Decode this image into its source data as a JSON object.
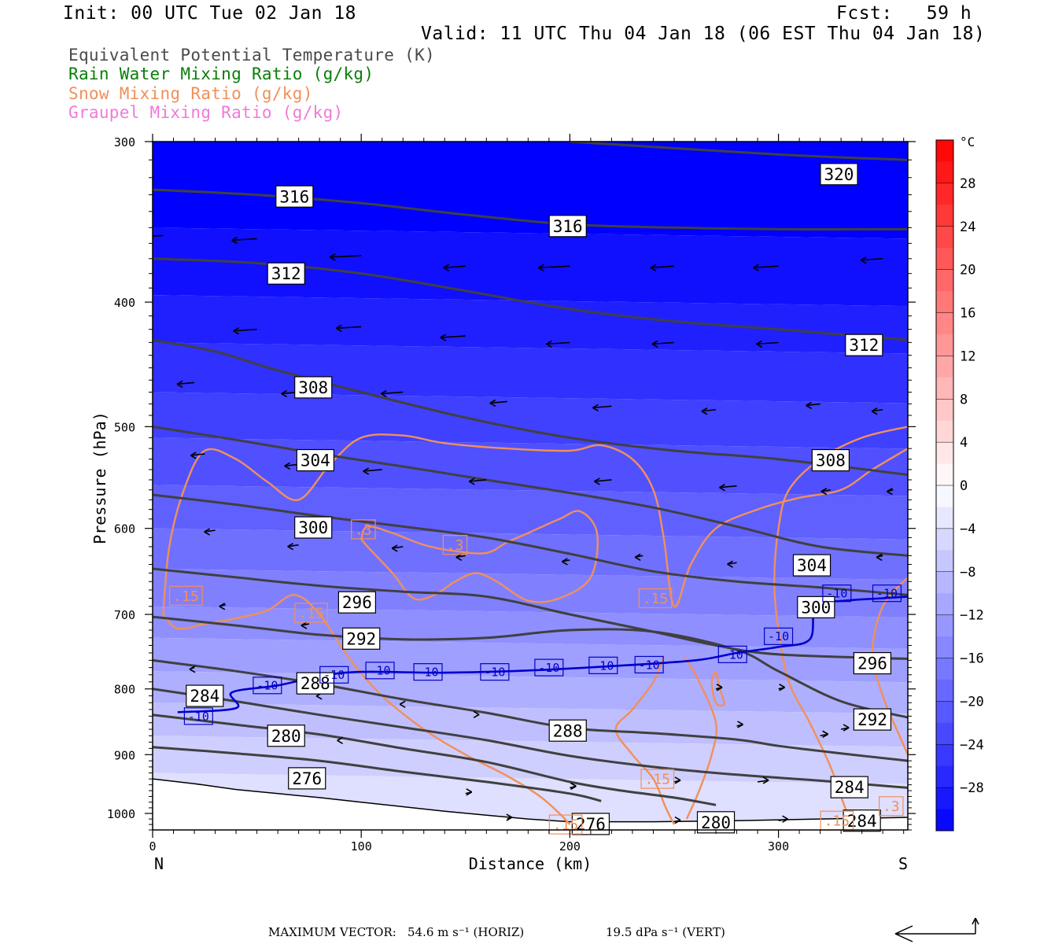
{
  "header": {
    "init": "Init: 00 UTC Tue 02 Jan 18",
    "fcst": "Fcst:   59 h",
    "valid": "Valid: 11 UTC Thu 04 Jan 18 (06 EST Thu 04 Jan 18)"
  },
  "legend": [
    {
      "label": "Equivalent Potential Temperature (K)",
      "color": "#4a4a4a"
    },
    {
      "label": "Rain Water Mixing Ratio (g/kg)",
      "color": "#0a7d0a"
    },
    {
      "label": "Snow Mixing Ratio (g/kg)",
      "color": "#f0905a"
    },
    {
      "label": "Graupel Mixing Ratio (g/kg)",
      "color": "#f07ad8"
    }
  ],
  "chart_data": {
    "type": "cross-section",
    "xlabel": "Distance (km)",
    "ylabel": "Pressure (hPa)",
    "x_ticks": [
      0,
      100,
      200,
      300
    ],
    "y_ticks": [
      300,
      400,
      500,
      600,
      700,
      800,
      900,
      1000
    ],
    "xlim": [
      0,
      362
    ],
    "ylim": [
      1030,
      300
    ],
    "y_scale": "log",
    "end_labels": {
      "left": "N",
      "right": "S"
    },
    "colorbar": {
      "unit": "°C",
      "labels": [
        28,
        24,
        20,
        16,
        12,
        8,
        4,
        0,
        -4,
        -8,
        -12,
        -16,
        -20,
        -24,
        -28
      ],
      "range": [
        -32,
        32
      ]
    },
    "theta_e_contours": [
      {
        "value": 320,
        "points": [
          [
            200,
            300
          ],
          [
            300,
            307
          ],
          [
            362,
            310
          ]
        ]
      },
      {
        "value": 316,
        "points": [
          [
            0,
            327
          ],
          [
            50,
            330
          ],
          [
            100,
            335
          ],
          [
            150,
            342
          ],
          [
            200,
            348
          ],
          [
            250,
            350
          ],
          [
            300,
            351
          ],
          [
            362,
            351
          ]
        ]
      },
      {
        "value": 312,
        "points": [
          [
            0,
            370
          ],
          [
            50,
            373
          ],
          [
            100,
            380
          ],
          [
            150,
            392
          ],
          [
            200,
            405
          ],
          [
            250,
            414
          ],
          [
            300,
            420
          ],
          [
            362,
            428
          ]
        ]
      },
      {
        "value": 308,
        "points": [
          [
            0,
            428
          ],
          [
            30,
            437
          ],
          [
            60,
            452
          ],
          [
            100,
            470
          ],
          [
            150,
            492
          ],
          [
            200,
            510
          ],
          [
            250,
            522
          ],
          [
            300,
            530
          ],
          [
            362,
            545
          ]
        ]
      },
      {
        "value": 304,
        "points": [
          [
            0,
            500
          ],
          [
            40,
            512
          ],
          [
            80,
            525
          ],
          [
            120,
            537
          ],
          [
            160,
            550
          ],
          [
            200,
            563
          ],
          [
            240,
            578
          ],
          [
            280,
            598
          ],
          [
            320,
            620
          ],
          [
            362,
            630
          ]
        ]
      },
      {
        "value": 300,
        "points": [
          [
            0,
            565
          ],
          [
            40,
            575
          ],
          [
            80,
            587
          ],
          [
            120,
            598
          ],
          [
            160,
            610
          ],
          [
            200,
            628
          ],
          [
            240,
            648
          ],
          [
            280,
            660
          ],
          [
            320,
            667
          ],
          [
            362,
            676
          ]
        ]
      },
      {
        "value": 296,
        "points": [
          [
            0,
            645
          ],
          [
            40,
            655
          ],
          [
            80,
            665
          ],
          [
            120,
            672
          ],
          [
            160,
            678
          ],
          [
            200,
            700
          ],
          [
            240,
            722
          ],
          [
            270,
            740
          ],
          [
            300,
            752
          ],
          [
            362,
            758
          ]
        ]
      },
      {
        "value": 292,
        "points": [
          [
            0,
            703
          ],
          [
            40,
            714
          ],
          [
            80,
            726
          ],
          [
            120,
            732
          ],
          [
            160,
            730
          ],
          [
            200,
            720
          ],
          [
            240,
            722
          ],
          [
            280,
            746
          ],
          [
            300,
            775
          ],
          [
            330,
            818
          ],
          [
            362,
            842
          ]
        ]
      },
      {
        "value": 288,
        "points": [
          [
            0,
            760
          ],
          [
            40,
            775
          ],
          [
            80,
            793
          ],
          [
            120,
            815
          ],
          [
            160,
            835
          ],
          [
            200,
            858
          ],
          [
            240,
            866
          ],
          [
            280,
            876
          ],
          [
            300,
            886
          ],
          [
            330,
            898
          ],
          [
            362,
            910
          ]
        ]
      },
      {
        "value": 284,
        "points": [
          [
            0,
            800
          ],
          [
            40,
            818
          ],
          [
            80,
            838
          ],
          [
            120,
            857
          ],
          [
            160,
            877
          ],
          [
            200,
            902
          ],
          [
            240,
            920
          ],
          [
            280,
            933
          ],
          [
            320,
            943
          ],
          [
            362,
            955
          ]
        ]
      },
      {
        "value": 280,
        "points": [
          [
            0,
            838
          ],
          [
            40,
            853
          ],
          [
            80,
            868
          ],
          [
            120,
            890
          ],
          [
            160,
            912
          ],
          [
            200,
            945
          ],
          [
            225,
            960
          ],
          [
            250,
            972
          ],
          [
            270,
            985
          ]
        ]
      },
      {
        "value": 276,
        "points": [
          [
            0,
            888
          ],
          [
            40,
            898
          ],
          [
            80,
            910
          ],
          [
            120,
            928
          ],
          [
            160,
            945
          ],
          [
            200,
            965
          ],
          [
            215,
            978
          ]
        ]
      }
    ],
    "theta_e_labels": [
      {
        "value": 320,
        "x": 329,
        "p": 318
      },
      {
        "value": 316,
        "x": 68,
        "p": 331
      },
      {
        "value": 316,
        "x": 199,
        "p": 349
      },
      {
        "value": 312,
        "x": 64,
        "p": 380
      },
      {
        "value": 312,
        "x": 341,
        "p": 432
      },
      {
        "value": 308,
        "x": 77,
        "p": 466
      },
      {
        "value": 308,
        "x": 325,
        "p": 531
      },
      {
        "value": 304,
        "x": 78,
        "p": 531
      },
      {
        "value": 304,
        "x": 316,
        "p": 641
      },
      {
        "value": 300,
        "x": 77,
        "p": 599
      },
      {
        "value": 300,
        "x": 318,
        "p": 691
      },
      {
        "value": 296,
        "x": 98,
        "p": 685
      },
      {
        "value": 296,
        "x": 345,
        "p": 764
      },
      {
        "value": 292,
        "x": 100,
        "p": 731
      },
      {
        "value": 292,
        "x": 345,
        "p": 845
      },
      {
        "value": 288,
        "x": 78,
        "p": 792
      },
      {
        "value": 288,
        "x": 199,
        "p": 862
      },
      {
        "value": 284,
        "x": 25,
        "p": 810
      },
      {
        "value": 284,
        "x": 334,
        "p": 954
      },
      {
        "value": 280,
        "x": 64,
        "p": 870
      },
      {
        "value": 280,
        "x": 270,
        "p": 1016
      },
      {
        "value": 276,
        "x": 74,
        "p": 939
      },
      {
        "value": 276,
        "x": 210,
        "p": 1019
      },
      {
        "value": 284,
        "x": 340,
        "p": 1013
      }
    ],
    "isotherm_m10": {
      "value": -10,
      "points": [
        [
          12,
          834
        ],
        [
          40,
          828
        ],
        [
          38,
          805
        ],
        [
          60,
          795
        ],
        [
          80,
          782
        ],
        [
          100,
          776
        ],
        [
          140,
          777
        ],
        [
          180,
          774
        ],
        [
          220,
          768
        ],
        [
          260,
          760
        ],
        [
          280,
          750
        ],
        [
          300,
          742
        ],
        [
          315,
          732
        ],
        [
          318,
          690
        ],
        [
          332,
          683
        ],
        [
          350,
          680
        ],
        [
          362,
          678
        ]
      ],
      "labels": [
        [
          22,
          840
        ],
        [
          55,
          795
        ],
        [
          87,
          780
        ],
        [
          109,
          774
        ],
        [
          132,
          776
        ],
        [
          164,
          776
        ],
        [
          190,
          770
        ],
        [
          216,
          767
        ],
        [
          238,
          766
        ],
        [
          278,
          752
        ],
        [
          300,
          728
        ],
        [
          328,
          674
        ],
        [
          352,
          674
        ]
      ]
    },
    "snow_labels": [
      {
        "text": ".15",
        "x": 16,
        "p": 677
      },
      {
        "text": ".15",
        "x": 76,
        "p": 698
      },
      {
        "text": ".3",
        "x": 101,
        "p": 601
      },
      {
        "text": ".3",
        "x": 145,
        "p": 618
      },
      {
        "text": ".15",
        "x": 241,
        "p": 680
      },
      {
        "text": ".15",
        "x": 242,
        "p": 940
      },
      {
        "text": ".15",
        "x": 198,
        "p": 1020
      },
      {
        "text": ".15",
        "x": 328,
        "p": 1013
      },
      {
        "text": ".3",
        "x": 354,
        "p": 987
      }
    ],
    "temperature_field": [
      {
        "level_c": -32,
        "p_top": 300,
        "p_bot": 350
      },
      {
        "level_c": -30,
        "p_top": 350,
        "p_bot": 395
      },
      {
        "level_c": -28,
        "p_top": 395,
        "p_bot": 430
      },
      {
        "level_c": -26,
        "p_top": 430,
        "p_bot": 470
      },
      {
        "level_c": -24,
        "p_top": 470,
        "p_bot": 510
      },
      {
        "level_c": -22,
        "p_top": 510,
        "p_bot": 555
      },
      {
        "level_c": -20,
        "p_top": 555,
        "p_bot": 600
      },
      {
        "level_c": -18,
        "p_top": 600,
        "p_bot": 645
      },
      {
        "level_c": -16,
        "p_top": 645,
        "p_bot": 690
      },
      {
        "level_c": -14,
        "p_top": 690,
        "p_bot": 730
      },
      {
        "level_c": -12,
        "p_top": 730,
        "p_bot": 775
      },
      {
        "level_c": -10,
        "p_top": 775,
        "p_bot": 820
      },
      {
        "level_c": -8,
        "p_top": 820,
        "p_bot": 870
      },
      {
        "level_c": -6,
        "p_top": 870,
        "p_bot": 930
      },
      {
        "level_c": -4,
        "p_top": 930,
        "p_bot": 1030
      }
    ]
  },
  "footer": {
    "label": "MAXIMUM VECTOR:",
    "horiz": "54.6 m s⁻¹ (HORIZ)",
    "vert": "19.5 dPa s⁻¹ (VERT)"
  }
}
